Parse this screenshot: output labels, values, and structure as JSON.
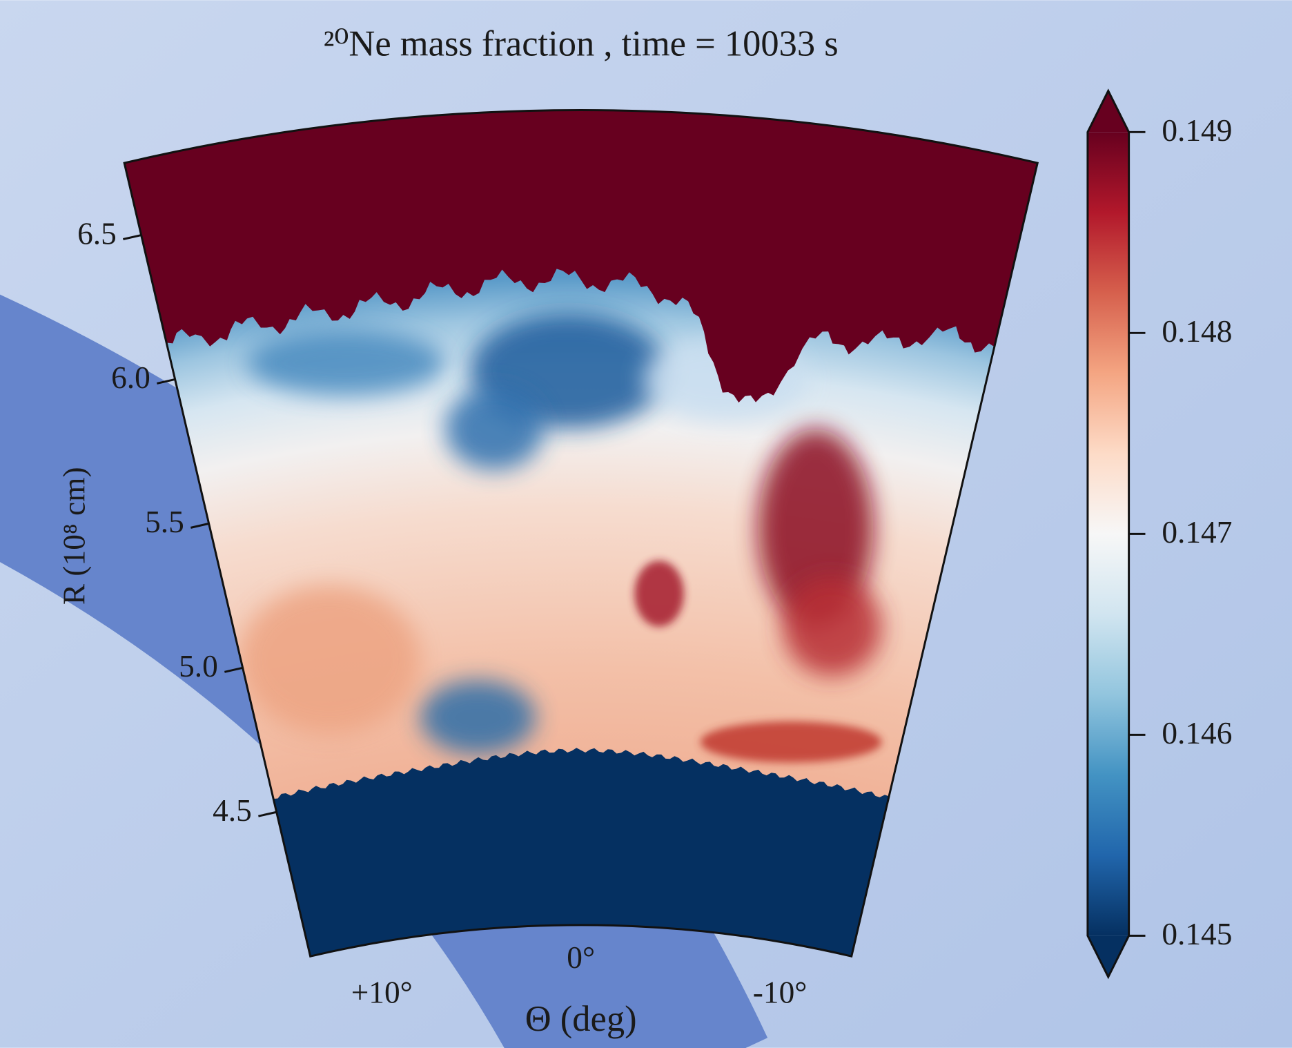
{
  "chart_data": {
    "type": "polar-wedge",
    "title": "²⁰Ne mass fraction , time = 10033 s",
    "ylabel": "R (10⁸ cm)",
    "xlabel": "Θ (deg)",
    "rlim": [
      4.0,
      6.75
    ],
    "rticks": [
      {
        "value": 4.5,
        "label": "4.5"
      },
      {
        "value": 5,
        "label": "5.0"
      },
      {
        "value": 5.5,
        "label": "5.5"
      },
      {
        "value": 6,
        "label": "6.0"
      },
      {
        "value": 6.5,
        "label": "6.5"
      }
    ],
    "thetalim": [
      13.2,
      -13.2
    ],
    "thetaticks": [
      {
        "value": 10,
        "label": "+10°"
      },
      {
        "value": 0,
        "label": "0°"
      },
      {
        "value": -10,
        "label": "-10°"
      }
    ],
    "colorbar": {
      "lim": [
        0.145,
        0.149
      ],
      "ticks": [
        0.145,
        0.146,
        0.147,
        0.148,
        0.149
      ]
    }
  }
}
